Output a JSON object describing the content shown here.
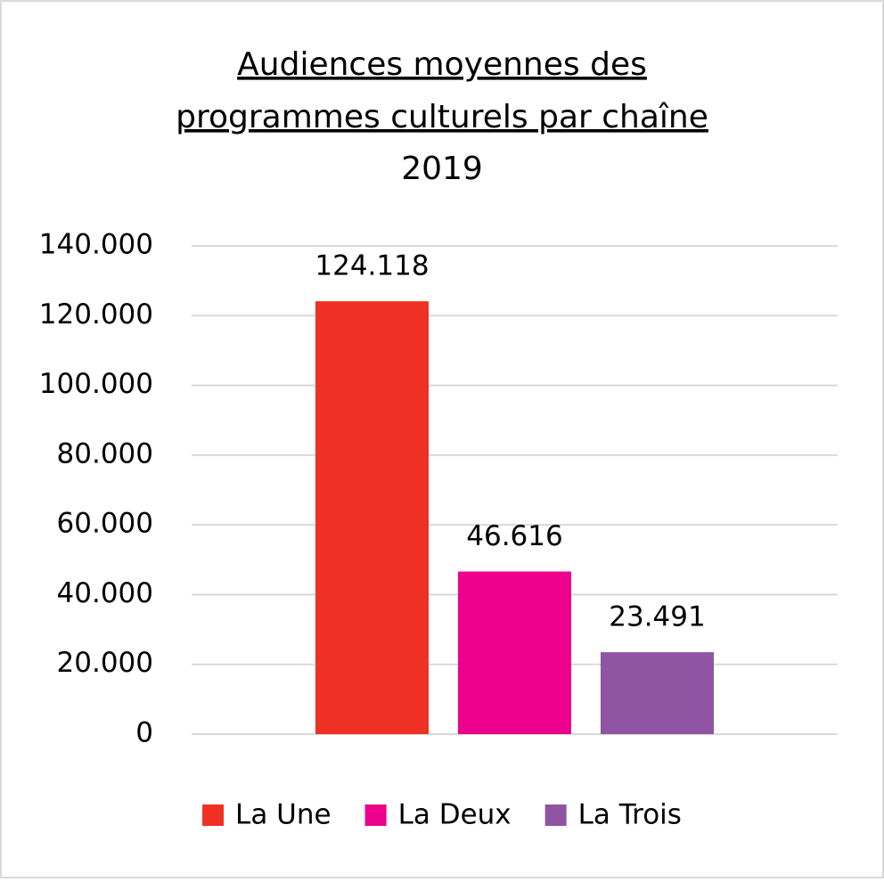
{
  "chart_data": {
    "type": "bar",
    "title": [
      "Audiences moyennes des",
      "programmes culturels par chaîne"
    ],
    "subtitle": "2019",
    "categories": [
      null
    ],
    "series": [
      {
        "name": "La Une",
        "color": "#ee3124",
        "values": [
          124118
        ],
        "value_labels": [
          "124.118"
        ]
      },
      {
        "name": "La Deux",
        "color": "#ec008c",
        "values": [
          46616
        ],
        "value_labels": [
          "46.616"
        ]
      },
      {
        "name": "La Trois",
        "color": "#9055a2",
        "values": [
          23491
        ],
        "value_labels": [
          "23.491"
        ]
      }
    ],
    "ylim": [
      0,
      140000
    ],
    "yticks": [
      0,
      {
        "value": 20000,
        "label": "20.000"
      },
      {
        "value": 40000,
        "label": "40.000"
      },
      {
        "value": 60000,
        "label": "60.000"
      },
      {
        "value": 80000,
        "label": "80.000"
      },
      {
        "value": 100000,
        "label": "100.000"
      },
      {
        "value": 120000,
        "label": "120.000"
      },
      {
        "value": 140000,
        "label": "140.000"
      }
    ],
    "grid": true,
    "legend": "bottom"
  }
}
